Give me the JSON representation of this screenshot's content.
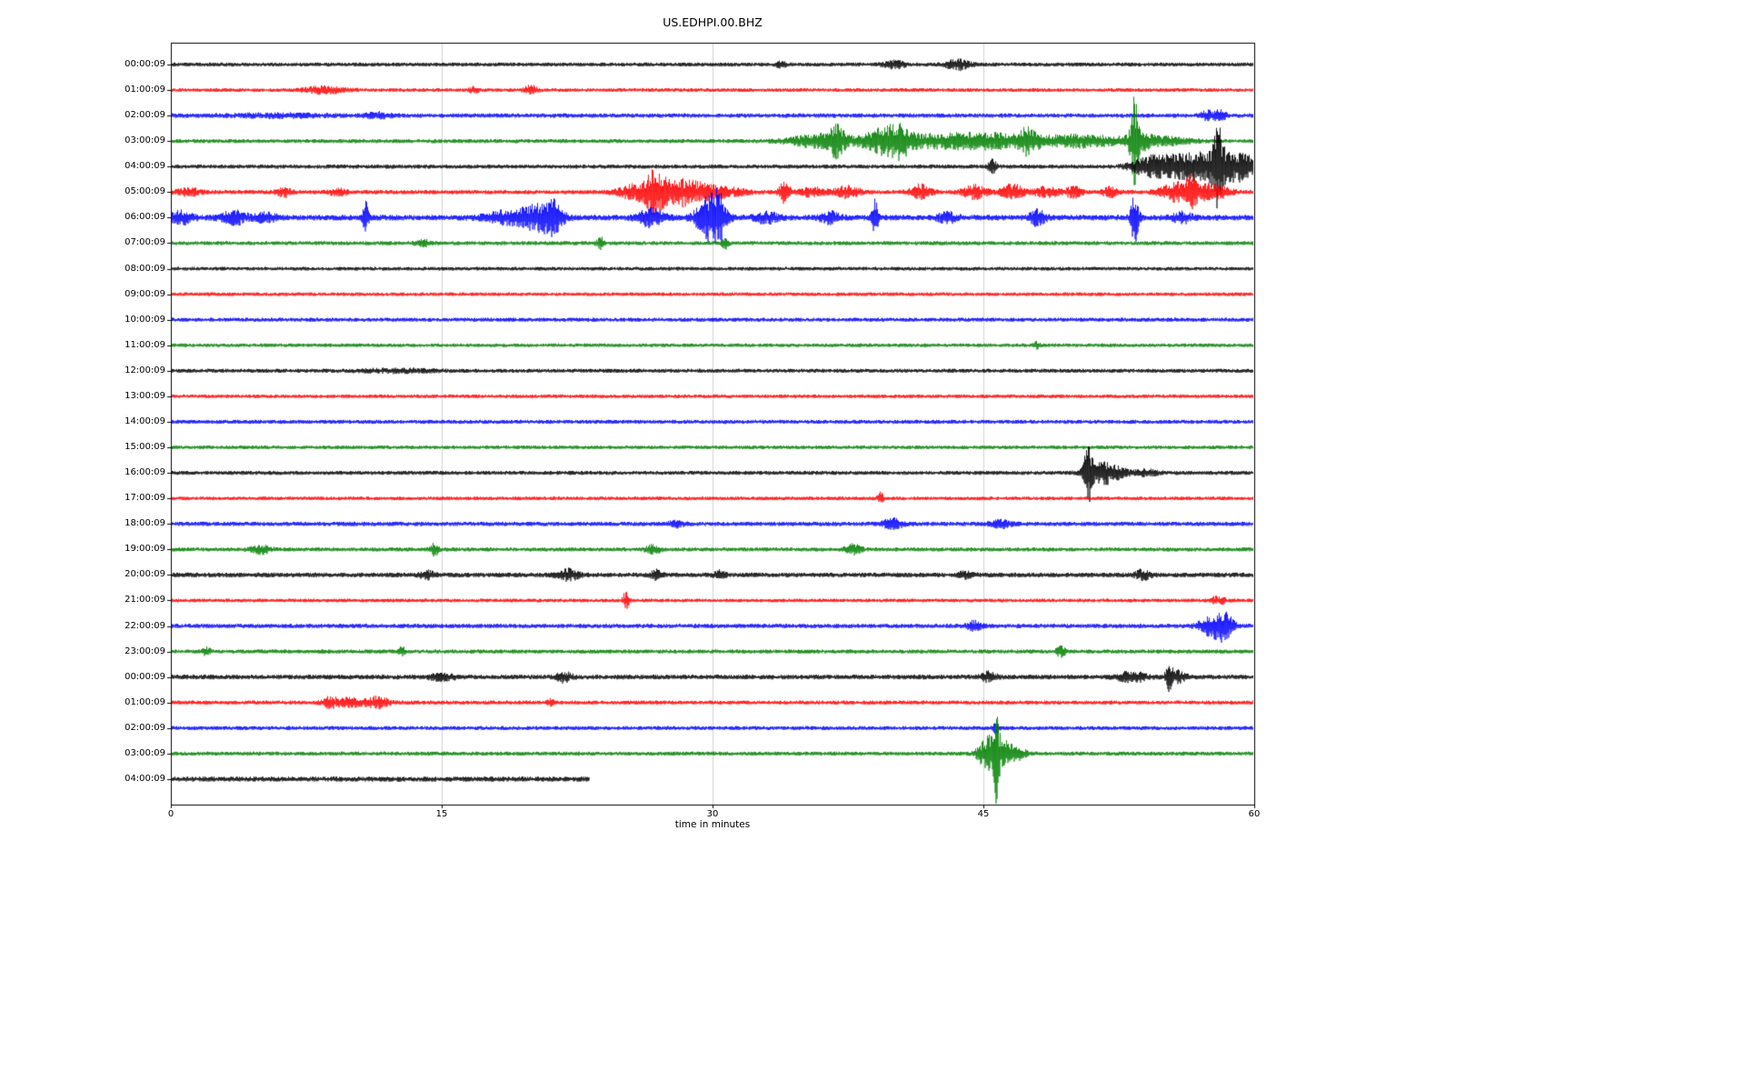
{
  "title": "US.EDHPI.00.BHZ",
  "chart_data": {
    "type": "line",
    "subtype": "seismogram-day-plot",
    "title": "US.EDHPI.00.BHZ",
    "xlabel": "time in minutes",
    "xlim": [
      0,
      60
    ],
    "x_ticks": [
      0,
      15,
      30,
      45,
      60
    ],
    "grid_minutes": [
      15,
      30,
      45
    ],
    "legend": "none",
    "grid": "vertical-only",
    "frame_color": "#000000",
    "grid_color": "#c6c6c6",
    "trace_color_cycle": [
      "#000000",
      "#ff0000",
      "#0000ff",
      "#008000"
    ],
    "rows": [
      {
        "label": "00:00:09",
        "color": "#000000",
        "end_min": 60,
        "base_amp": 2.2,
        "events": [
          {
            "t": 33.8,
            "w": 0.2,
            "a": 2.5
          },
          {
            "t": 40.1,
            "w": 0.4,
            "a": 4
          },
          {
            "t": 43.6,
            "w": 0.45,
            "a": 5.5
          }
        ]
      },
      {
        "label": "01:00:09",
        "color": "#ff0000",
        "end_min": 60,
        "base_amp": 2.0,
        "events": [
          {
            "t": 8.5,
            "w": 0.8,
            "a": 3.5
          },
          {
            "t": 16.8,
            "w": 0.2,
            "a": 3
          },
          {
            "t": 19.9,
            "w": 0.25,
            "a": 5.5
          }
        ]
      },
      {
        "label": "02:00:09",
        "color": "#0000ff",
        "end_min": 60,
        "base_amp": 2.4,
        "events": [
          {
            "t": 6,
            "w": 2,
            "a": 1.5
          },
          {
            "t": 11.5,
            "w": 0.5,
            "a": 2.5
          },
          {
            "t": 57.3,
            "w": 0.2,
            "a": 4
          },
          {
            "t": 58,
            "w": 0.35,
            "a": 5
          }
        ]
      },
      {
        "label": "03:00:09",
        "color": "#008000",
        "end_min": 60,
        "base_amp": 2.2,
        "events": [
          {
            "t": 35.9,
            "w": 1.2,
            "a": 7
          },
          {
            "t": 36.9,
            "w": 0.3,
            "a": 13
          },
          {
            "t": 39.5,
            "w": 0.9,
            "a": 13
          },
          {
            "t": 40.4,
            "w": 0.4,
            "a": 9
          },
          {
            "t": 42,
            "w": 1.4,
            "a": 5
          },
          {
            "t": 44.2,
            "w": 1.4,
            "a": 5
          },
          {
            "t": 46,
            "w": 1.2,
            "a": 5
          },
          {
            "t": 47.5,
            "w": 0.35,
            "a": 11
          },
          {
            "t": 49.2,
            "w": 1.4,
            "a": 4
          },
          {
            "t": 51.2,
            "w": 1.4,
            "a": 4
          },
          {
            "t": 53.4,
            "w": 0.15,
            "a": 42
          },
          {
            "t": 53.6,
            "w": 0.5,
            "a": 9
          },
          {
            "t": 55.2,
            "w": 0.9,
            "a": 4
          }
        ]
      },
      {
        "label": "04:00:09",
        "color": "#000000",
        "end_min": 60,
        "base_amp": 2.2,
        "events": [
          {
            "t": 45.5,
            "w": 0.15,
            "a": 9
          },
          {
            "t": 54.1,
            "w": 0.7,
            "a": 7
          },
          {
            "t": 55.6,
            "w": 1.1,
            "a": 9
          },
          {
            "t": 57,
            "w": 0.9,
            "a": 10
          },
          {
            "t": 58,
            "w": 0.2,
            "a": 34
          },
          {
            "t": 58.6,
            "w": 0.7,
            "a": 12
          },
          {
            "t": 59.5,
            "w": 0.5,
            "a": 8
          }
        ]
      },
      {
        "label": "05:00:09",
        "color": "#ff0000",
        "end_min": 60,
        "base_amp": 2.3,
        "events": [
          {
            "t": 1,
            "w": 0.5,
            "a": 3.5
          },
          {
            "t": 6.3,
            "w": 0.3,
            "a": 4.5
          },
          {
            "t": 9.3,
            "w": 0.3,
            "a": 4.5
          },
          {
            "t": 26,
            "w": 0.8,
            "a": 9
          },
          {
            "t": 26.8,
            "w": 0.3,
            "a": 16
          },
          {
            "t": 27.8,
            "w": 0.7,
            "a": 12
          },
          {
            "t": 29,
            "w": 0.7,
            "a": 8
          },
          {
            "t": 30.6,
            "w": 0.9,
            "a": 5
          },
          {
            "t": 34,
            "w": 0.2,
            "a": 12
          },
          {
            "t": 35.6,
            "w": 0.5,
            "a": 5
          },
          {
            "t": 37.5,
            "w": 0.5,
            "a": 6
          },
          {
            "t": 41.5,
            "w": 0.4,
            "a": 8
          },
          {
            "t": 44.5,
            "w": 0.5,
            "a": 7
          },
          {
            "t": 46.6,
            "w": 0.4,
            "a": 9
          },
          {
            "t": 48.5,
            "w": 0.5,
            "a": 5
          },
          {
            "t": 50,
            "w": 0.3,
            "a": 6
          },
          {
            "t": 52,
            "w": 0.3,
            "a": 5
          },
          {
            "t": 55.8,
            "w": 0.7,
            "a": 10
          },
          {
            "t": 56.5,
            "w": 0.2,
            "a": 14
          },
          {
            "t": 57.6,
            "w": 0.7,
            "a": 8
          }
        ]
      },
      {
        "label": "06:00:09",
        "color": "#0000ff",
        "end_min": 60,
        "base_amp": 3.1,
        "events": [
          {
            "t": 0.6,
            "w": 0.5,
            "a": 6
          },
          {
            "t": 3.5,
            "w": 0.5,
            "a": 7
          },
          {
            "t": 5.2,
            "w": 0.5,
            "a": 4
          },
          {
            "t": 10.8,
            "w": 0.12,
            "a": 16
          },
          {
            "t": 18.5,
            "w": 0.8,
            "a": 6
          },
          {
            "t": 20.3,
            "w": 0.7,
            "a": 12
          },
          {
            "t": 21.2,
            "w": 0.4,
            "a": 14
          },
          {
            "t": 26.6,
            "w": 0.5,
            "a": 9
          },
          {
            "t": 29.8,
            "w": 0.5,
            "a": 22
          },
          {
            "t": 30.4,
            "w": 0.3,
            "a": 18
          },
          {
            "t": 33,
            "w": 0.5,
            "a": 5
          },
          {
            "t": 36.5,
            "w": 0.4,
            "a": 6
          },
          {
            "t": 39,
            "w": 0.12,
            "a": 18
          },
          {
            "t": 43,
            "w": 0.4,
            "a": 5
          },
          {
            "t": 48,
            "w": 0.3,
            "a": 8
          },
          {
            "t": 53.4,
            "w": 0.15,
            "a": 30
          },
          {
            "t": 56,
            "w": 0.4,
            "a": 5
          }
        ]
      },
      {
        "label": "07:00:09",
        "color": "#008000",
        "end_min": 60,
        "base_amp": 2.2,
        "events": [
          {
            "t": 14,
            "w": 0.3,
            "a": 3
          },
          {
            "t": 23.8,
            "w": 0.15,
            "a": 6
          },
          {
            "t": 30.7,
            "w": 0.12,
            "a": 7
          }
        ]
      },
      {
        "label": "08:00:09",
        "color": "#000000",
        "end_min": 60,
        "base_amp": 2.0,
        "events": []
      },
      {
        "label": "09:00:09",
        "color": "#ff0000",
        "end_min": 60,
        "base_amp": 2.0,
        "events": []
      },
      {
        "label": "10:00:09",
        "color": "#0000ff",
        "end_min": 60,
        "base_amp": 2.2,
        "events": []
      },
      {
        "label": "11:00:09",
        "color": "#008000",
        "end_min": 60,
        "base_amp": 2.0,
        "events": [
          {
            "t": 48,
            "w": 0.12,
            "a": 4
          }
        ]
      },
      {
        "label": "12:00:09",
        "color": "#000000",
        "end_min": 60,
        "base_amp": 2.2,
        "events": [
          {
            "t": 12.5,
            "w": 1.5,
            "a": 1.5
          }
        ]
      },
      {
        "label": "13:00:09",
        "color": "#ff0000",
        "end_min": 60,
        "base_amp": 2.0,
        "events": []
      },
      {
        "label": "14:00:09",
        "color": "#0000ff",
        "end_min": 60,
        "base_amp": 2.2,
        "events": []
      },
      {
        "label": "15:00:09",
        "color": "#008000",
        "end_min": 60,
        "base_amp": 2.0,
        "events": []
      },
      {
        "label": "16:00:09",
        "color": "#000000",
        "end_min": 60,
        "base_amp": 2.2,
        "events": [
          {
            "t": 50.8,
            "w": 0.15,
            "a": 28
          },
          {
            "t": 51.2,
            "w": 0.5,
            "a": 8
          },
          {
            "t": 51.9,
            "w": 0.3,
            "a": 9
          },
          {
            "t": 52.6,
            "w": 0.3,
            "a": 5
          },
          {
            "t": 54,
            "w": 0.5,
            "a": 3
          }
        ]
      },
      {
        "label": "17:00:09",
        "color": "#ff0000",
        "end_min": 60,
        "base_amp": 2.0,
        "events": [
          {
            "t": 39.3,
            "w": 0.12,
            "a": 6
          }
        ]
      },
      {
        "label": "18:00:09",
        "color": "#0000ff",
        "end_min": 60,
        "base_amp": 2.4,
        "events": [
          {
            "t": 28,
            "w": 0.3,
            "a": 3
          },
          {
            "t": 40,
            "w": 0.4,
            "a": 5
          },
          {
            "t": 46,
            "w": 0.4,
            "a": 4
          }
        ]
      },
      {
        "label": "19:00:09",
        "color": "#008000",
        "end_min": 60,
        "base_amp": 2.2,
        "events": [
          {
            "t": 5,
            "w": 0.4,
            "a": 4
          },
          {
            "t": 14.6,
            "w": 0.15,
            "a": 7
          },
          {
            "t": 26.7,
            "w": 0.3,
            "a": 4
          },
          {
            "t": 37.8,
            "w": 0.3,
            "a": 5
          }
        ]
      },
      {
        "label": "20:00:09",
        "color": "#000000",
        "end_min": 60,
        "base_amp": 2.6,
        "events": [
          {
            "t": 14.2,
            "w": 0.3,
            "a": 4
          },
          {
            "t": 22,
            "w": 0.4,
            "a": 6
          },
          {
            "t": 26.9,
            "w": 0.2,
            "a": 5
          },
          {
            "t": 30.4,
            "w": 0.2,
            "a": 4
          },
          {
            "t": 44,
            "w": 0.3,
            "a": 3
          },
          {
            "t": 53.8,
            "w": 0.3,
            "a": 5
          }
        ]
      },
      {
        "label": "21:00:09",
        "color": "#ff0000",
        "end_min": 60,
        "base_amp": 2.0,
        "events": [
          {
            "t": 25.2,
            "w": 0.12,
            "a": 9
          },
          {
            "t": 58,
            "w": 0.3,
            "a": 4
          }
        ]
      },
      {
        "label": "22:00:09",
        "color": "#0000ff",
        "end_min": 60,
        "base_amp": 2.4,
        "events": [
          {
            "t": 44.5,
            "w": 0.3,
            "a": 5
          },
          {
            "t": 57.8,
            "w": 0.55,
            "a": 12
          },
          {
            "t": 58.4,
            "w": 0.3,
            "a": 9
          }
        ]
      },
      {
        "label": "23:00:09",
        "color": "#008000",
        "end_min": 60,
        "base_amp": 2.2,
        "events": [
          {
            "t": 2,
            "w": 0.15,
            "a": 5
          },
          {
            "t": 12.8,
            "w": 0.12,
            "a": 6
          },
          {
            "t": 49.3,
            "w": 0.2,
            "a": 5
          }
        ]
      },
      {
        "label": "00:00:09",
        "color": "#000000",
        "end_min": 60,
        "base_amp": 2.6,
        "events": [
          {
            "t": 15,
            "w": 0.5,
            "a": 3
          },
          {
            "t": 21.8,
            "w": 0.3,
            "a": 5
          },
          {
            "t": 45.3,
            "w": 0.3,
            "a": 5
          },
          {
            "t": 53.2,
            "w": 0.5,
            "a": 6
          },
          {
            "t": 55.3,
            "w": 0.15,
            "a": 13
          },
          {
            "t": 55.8,
            "w": 0.3,
            "a": 6
          }
        ]
      },
      {
        "label": "01:00:09",
        "color": "#ff0000",
        "end_min": 60,
        "base_amp": 2.2,
        "events": [
          {
            "t": 8.8,
            "w": 0.3,
            "a": 5
          },
          {
            "t": 9.9,
            "w": 0.6,
            "a": 5
          },
          {
            "t": 11.5,
            "w": 0.4,
            "a": 6
          },
          {
            "t": 21,
            "w": 0.2,
            "a": 3
          }
        ]
      },
      {
        "label": "02:00:09",
        "color": "#0000ff",
        "end_min": 60,
        "base_amp": 2.2,
        "events": [
          {
            "t": 45.7,
            "w": 0.12,
            "a": 5
          }
        ]
      },
      {
        "label": "03:00:09",
        "color": "#008000",
        "end_min": 60,
        "base_amp": 2.2,
        "events": [
          {
            "t": 45.3,
            "w": 0.4,
            "a": 18
          },
          {
            "t": 45.7,
            "w": 0.12,
            "a": 38
          },
          {
            "t": 46.2,
            "w": 0.4,
            "a": 12
          },
          {
            "t": 47,
            "w": 0.3,
            "a": 5
          }
        ]
      },
      {
        "label": "04:00:09",
        "color": "#000000",
        "end_min": 23.2,
        "base_amp": 2.8,
        "events": []
      }
    ]
  }
}
